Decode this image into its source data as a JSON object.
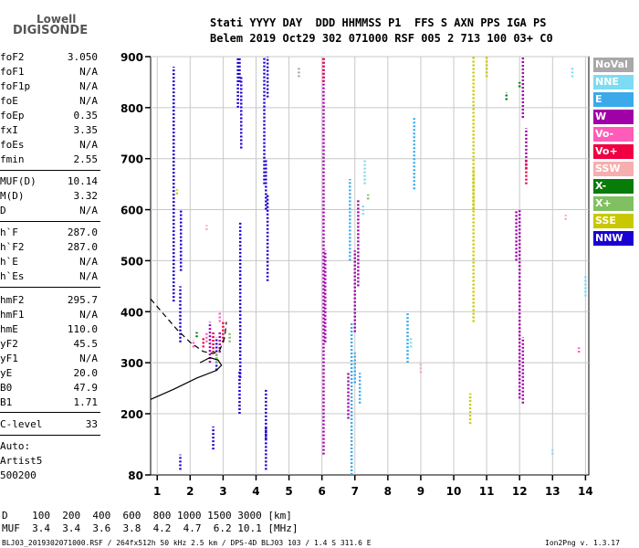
{
  "logo": {
    "line1": "Lowell",
    "line2": "DIGISONDE"
  },
  "header": {
    "labels": "Stati YYYY DAY  DDD HHMMSS P1  FFS S AXN PPS IGA PS",
    "values": "Belem 2019 Oct29 302 071000 RSF 005 2 713 100 03+ C0"
  },
  "params": [
    {
      "label": "foF2",
      "value": "3.050"
    },
    {
      "label": "foF1",
      "value": "N/A"
    },
    {
      "label": "foF1p",
      "value": "N/A"
    },
    {
      "label": "foE",
      "value": "N/A"
    },
    {
      "label": "foEp",
      "value": "0.35"
    },
    {
      "label": "fxI",
      "value": "3.35"
    },
    {
      "label": "foEs",
      "value": "N/A"
    },
    {
      "label": "fmin",
      "value": "2.55"
    },
    {
      "label": "MUF(D)",
      "value": "10.14"
    },
    {
      "label": "M(D)",
      "value": "3.32"
    },
    {
      "label": "D",
      "value": "N/A"
    },
    {
      "label": "h`F",
      "value": "287.0"
    },
    {
      "label": "h`F2",
      "value": "287.0"
    },
    {
      "label": "h`E",
      "value": "N/A"
    },
    {
      "label": "h`Es",
      "value": "N/A"
    },
    {
      "label": "hmF2",
      "value": "295.7"
    },
    {
      "label": "hmF1",
      "value": "N/A"
    },
    {
      "label": "hmE",
      "value": "110.0"
    },
    {
      "label": "yF2",
      "value": "45.5"
    },
    {
      "label": "yF1",
      "value": "N/A"
    },
    {
      "label": "yE",
      "value": "20.0"
    },
    {
      "label": "B0",
      "value": "47.9"
    },
    {
      "label": "B1",
      "value": "1.71"
    },
    {
      "label": "C-level",
      "value": "33"
    }
  ],
  "autoscaling": {
    "line1": "Auto:",
    "line2": "Artist5",
    "line3": "500200"
  },
  "muf_table": {
    "d_row": "D    100  200  400  600  800 1000 1500 3000 [km]",
    "muf_row": "MUF  3.4  3.4  3.6  3.8  4.2  4.7  6.2 10.1 [MHz]"
  },
  "bottom_left": "BLJ03_2019302071000.RSF / 264fx512h 50 kHz 2.5 km / DPS-4D BLJ03 103 / 1.4 S 311.6 E",
  "bottom_right": "Ion2Png v. 1.3.17",
  "legend": [
    {
      "label": "NoVal",
      "color": "#a8a8a8"
    },
    {
      "label": "NNE",
      "color": "#7ddcf2"
    },
    {
      "label": "E",
      "color": "#3aaaea"
    },
    {
      "label": "W",
      "color": "#a000a8"
    },
    {
      "label": "Vo-",
      "color": "#ff5cba"
    },
    {
      "label": "Vo+",
      "color": "#f00040"
    },
    {
      "label": "SSW",
      "color": "#f6aeae"
    },
    {
      "label": "X-",
      "color": "#087c08"
    },
    {
      "label": "X+",
      "color": "#80c060"
    },
    {
      "label": "SSE",
      "color": "#c8c800"
    },
    {
      "label": "NNW",
      "color": "#1a00d2"
    }
  ],
  "chart_data": {
    "type": "scatter",
    "xlim": [
      0.8,
      14.1
    ],
    "ylim": [
      80,
      900
    ],
    "x_ticks": [
      1,
      2,
      3,
      4,
      5,
      6,
      7,
      8,
      9,
      10,
      11,
      12,
      13,
      14
    ],
    "y_ticks": [
      80,
      200,
      300,
      400,
      500,
      600,
      700,
      800,
      900
    ],
    "grid": true,
    "series": [
      {
        "name": "NNW",
        "color": "#1a00d2",
        "segments": [
          [
            1.5,
            420,
            880
          ],
          [
            1.7,
            340,
            450
          ],
          [
            1.7,
            90,
            120
          ],
          [
            1.72,
            480,
            600
          ],
          [
            2.7,
            130,
            175
          ],
          [
            3.5,
            850,
            900
          ],
          [
            3.52,
            270,
            575
          ],
          [
            3.45,
            800,
            900
          ],
          [
            3.55,
            720,
            860
          ],
          [
            4.25,
            650,
            900
          ],
          [
            4.3,
            600,
            700
          ],
          [
            4.35,
            460,
            630
          ],
          [
            4.3,
            150,
            250
          ],
          [
            4.35,
            820,
            900
          ],
          [
            4.3,
            90,
            175
          ],
          [
            3.5,
            200,
            285
          ],
          [
            2.8,
            285,
            350
          ]
        ]
      },
      {
        "name": "W",
        "color": "#a000a8",
        "segments": [
          [
            6.05,
            120,
            900
          ],
          [
            6.1,
            340,
            520
          ],
          [
            6.8,
            190,
            280
          ],
          [
            7.1,
            450,
            620
          ],
          [
            7.0,
            360,
            520
          ],
          [
            12.0,
            230,
            600
          ],
          [
            12.1,
            220,
            350
          ],
          [
            12.2,
            680,
            760
          ],
          [
            12.1,
            780,
            900
          ],
          [
            11.9,
            500,
            600
          ],
          [
            2.6,
            300,
            380
          ],
          [
            2.9,
            320,
            360
          ]
        ]
      },
      {
        "name": "E",
        "color": "#3aaaea",
        "segments": [
          [
            6.9,
            80,
            380
          ],
          [
            6.85,
            500,
            660
          ],
          [
            7.0,
            260,
            320
          ],
          [
            7.15,
            220,
            280
          ],
          [
            8.6,
            300,
            400
          ],
          [
            8.8,
            640,
            780
          ]
        ]
      },
      {
        "name": "NNE",
        "color": "#7ddcf2",
        "segments": [
          [
            7.25,
            590,
            610
          ],
          [
            7.3,
            650,
            700
          ],
          [
            8.7,
            330,
            350
          ],
          [
            13.0,
            120,
            130
          ],
          [
            14.0,
            430,
            470
          ],
          [
            13.6,
            860,
            880
          ]
        ]
      },
      {
        "name": "SSE",
        "color": "#c8c800",
        "segments": [
          [
            10.6,
            380,
            900
          ],
          [
            10.5,
            180,
            240
          ],
          [
            10.6,
            600,
            680
          ],
          [
            11.0,
            860,
            900
          ],
          [
            1.6,
            630,
            640
          ]
        ]
      },
      {
        "name": "Vo+",
        "color": "#f00040",
        "segments": [
          [
            2.4,
            330,
            350
          ],
          [
            2.7,
            320,
            360
          ],
          [
            3.0,
            340,
            380
          ],
          [
            6.05,
            850,
            900
          ],
          [
            12.2,
            650,
            700
          ]
        ]
      },
      {
        "name": "Vo-",
        "color": "#ff5cba",
        "segments": [
          [
            2.5,
            340,
            360
          ],
          [
            2.9,
            380,
            400
          ],
          [
            2.1,
            330,
            345
          ],
          [
            13.8,
            320,
            330
          ]
        ]
      },
      {
        "name": "X-",
        "color": "#087c08",
        "segments": [
          [
            11.6,
            815,
            830
          ],
          [
            2.2,
            350,
            360
          ],
          [
            12.0,
            840,
            850
          ]
        ]
      },
      {
        "name": "X+",
        "color": "#80c060",
        "segments": [
          [
            2.8,
            300,
            320
          ],
          [
            3.2,
            340,
            360
          ],
          [
            7.4,
            620,
            630
          ]
        ]
      },
      {
        "name": "SSW",
        "color": "#f6aeae",
        "segments": [
          [
            2.5,
            560,
            570
          ],
          [
            9.0,
            280,
            300
          ],
          [
            13.4,
            580,
            590
          ]
        ]
      },
      {
        "name": "NoVal",
        "color": "#a8a8a8",
        "segments": [
          [
            5.3,
            860,
            880
          ]
        ]
      }
    ],
    "profile_curve": [
      [
        0.8,
        228
      ],
      [
        1.5,
        248
      ],
      [
        2.2,
        270
      ],
      [
        2.8,
        285
      ],
      [
        2.95,
        295
      ],
      [
        2.85,
        305
      ],
      [
        2.6,
        310
      ],
      [
        2.3,
        300
      ]
    ],
    "dashed_curve": [
      [
        0.8,
        425
      ],
      [
        1.2,
        395
      ],
      [
        1.6,
        365
      ],
      [
        2.0,
        340
      ],
      [
        2.4,
        322
      ],
      [
        2.7,
        318
      ],
      [
        2.9,
        325
      ],
      [
        3.05,
        350
      ],
      [
        3.1,
        380
      ]
    ]
  }
}
